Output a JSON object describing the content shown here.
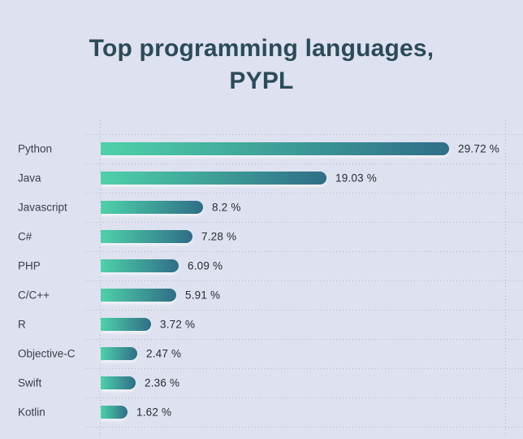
{
  "title": "Top programming languages,\nPYPL",
  "chart_data": {
    "type": "bar",
    "orientation": "horizontal",
    "title": "Top programming languages, PYPL",
    "categories": [
      "Python",
      "Java",
      "Javascript",
      "C#",
      "PHP",
      "C/C++",
      "R",
      "Objective-C",
      "Swift",
      "Kotlin"
    ],
    "values": [
      29.72,
      19.03,
      8.2,
      7.28,
      6.09,
      5.91,
      3.72,
      2.47,
      2.36,
      1.62
    ],
    "value_labels": [
      "29.72 %",
      "19.03 %",
      "8.2 %",
      "7.28 %",
      "6.09 %",
      "5.91 %",
      "3.72 %",
      "2.47 %",
      "2.36 %",
      "1.62 %"
    ],
    "xlabel": "",
    "ylabel": "",
    "xlim": [
      0,
      34.5
    ],
    "grid": "dotted",
    "legend": "none",
    "colors": {
      "background": "#dee1ef",
      "bar_gradient_start": "#4ed1a9",
      "bar_gradient_end": "#2f6e87",
      "grid_dots": "#b3b6c8",
      "title_text": "#2b4b59",
      "label_text": "#3a3f4b",
      "value_text": "#262b35"
    }
  }
}
